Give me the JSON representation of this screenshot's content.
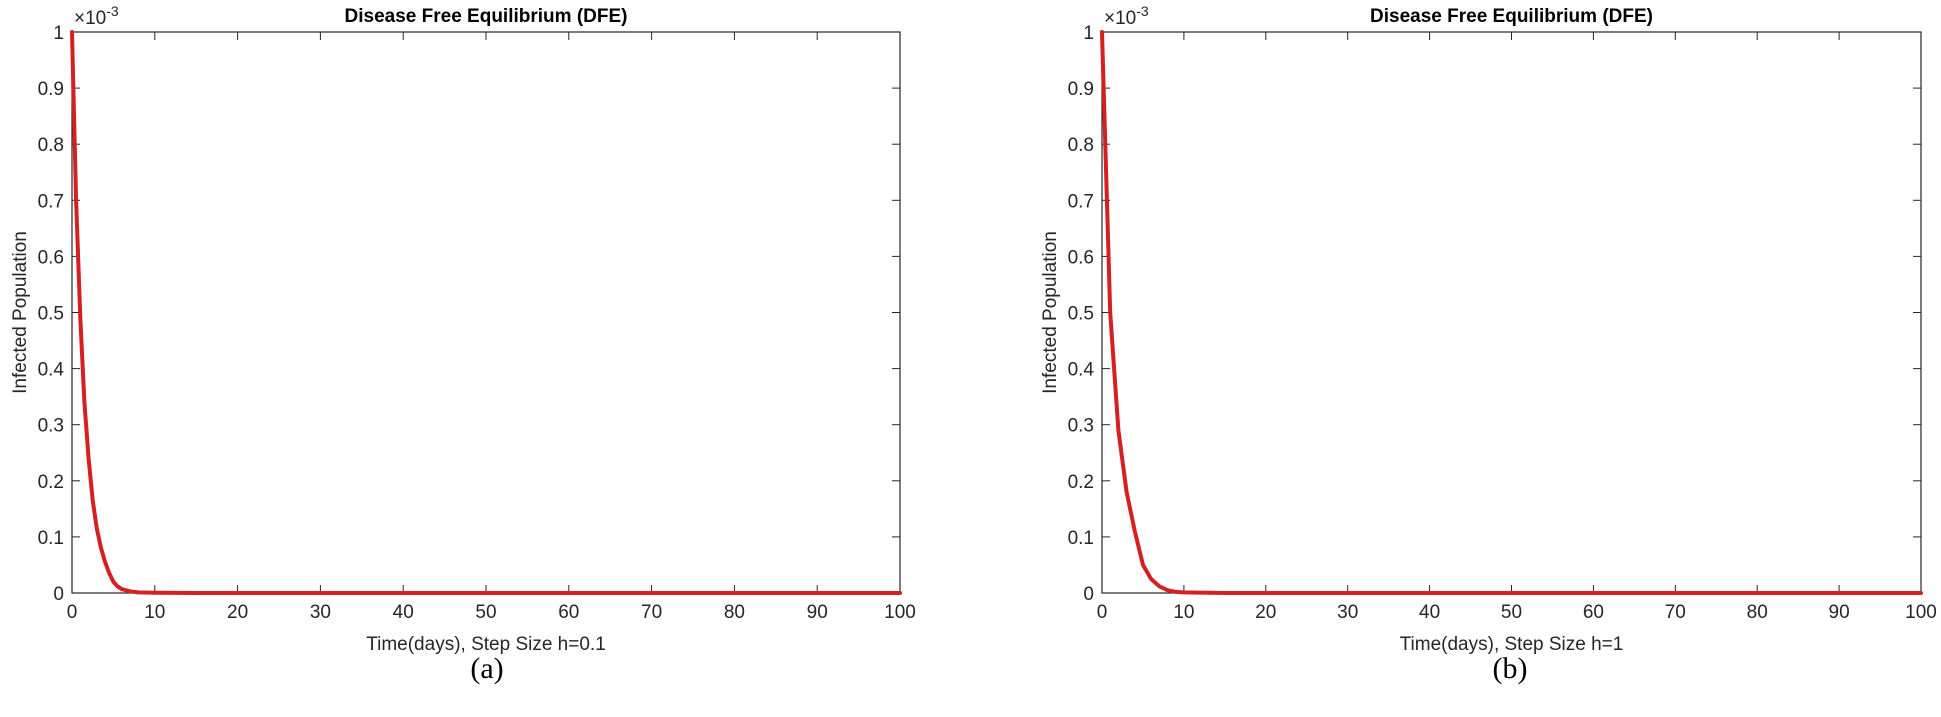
{
  "chart_data": [
    {
      "type": "line",
      "panel_label": "(a)",
      "title": "Disease Free Equilibrium (DFE)",
      "xlabel": "Time(days), Step Size h=0.1",
      "ylabel": "Infected Population",
      "y_exponent_label": "×10",
      "y_exponent_power": "-3",
      "xlim": [
        0,
        100
      ],
      "ylim": [
        0,
        1
      ],
      "xticks": [
        0,
        10,
        20,
        30,
        40,
        50,
        60,
        70,
        80,
        90,
        100
      ],
      "xtick_labels": [
        "0",
        "10",
        "20",
        "30",
        "40",
        "50",
        "60",
        "70",
        "80",
        "90",
        "100"
      ],
      "yticks": [
        0,
        0.1,
        0.2,
        0.3,
        0.4,
        0.5,
        0.6,
        0.7,
        0.8,
        0.9,
        1
      ],
      "ytick_labels": [
        "0",
        "0.1",
        "0.2",
        "0.3",
        "0.4",
        "0.5",
        "0.6",
        "0.7",
        "0.8",
        "0.9",
        "1"
      ],
      "grid": false,
      "line_color": "#d62020",
      "series": [
        {
          "x": [
            0,
            0.5,
            1,
            1.5,
            2,
            2.5,
            3,
            3.5,
            4,
            4.5,
            5,
            5.5,
            6,
            7,
            8,
            10,
            15,
            20,
            30,
            40,
            50,
            60,
            70,
            80,
            90,
            100
          ],
          "values": [
            1.0,
            0.7,
            0.49,
            0.34,
            0.24,
            0.165,
            0.115,
            0.08,
            0.055,
            0.035,
            0.02,
            0.012,
            0.007,
            0.003,
            0.001,
            0.0003,
            0,
            0,
            0,
            0,
            0,
            0,
            0,
            0,
            0,
            0
          ]
        }
      ]
    },
    {
      "type": "line",
      "panel_label": "(b)",
      "title": "Disease Free Equilibrium (DFE)",
      "xlabel": "Time(days), Step Size h=1",
      "ylabel": "Infected Population",
      "y_exponent_label": "×10",
      "y_exponent_power": "-3",
      "xlim": [
        0,
        100
      ],
      "ylim": [
        0,
        1
      ],
      "xticks": [
        0,
        10,
        20,
        30,
        40,
        50,
        60,
        70,
        80,
        90,
        100
      ],
      "xtick_labels": [
        "0",
        "10",
        "20",
        "30",
        "40",
        "50",
        "60",
        "70",
        "80",
        "90",
        "100"
      ],
      "yticks": [
        0,
        0.1,
        0.2,
        0.3,
        0.4,
        0.5,
        0.6,
        0.7,
        0.8,
        0.9,
        1
      ],
      "ytick_labels": [
        "0",
        "0.1",
        "0.2",
        "0.3",
        "0.4",
        "0.5",
        "0.6",
        "0.7",
        "0.8",
        "0.9",
        "1"
      ],
      "grid": false,
      "line_color": "#d62020",
      "series": [
        {
          "x": [
            0,
            1,
            2,
            3,
            4,
            5,
            6,
            7,
            8,
            9,
            10,
            15,
            20,
            30,
            40,
            50,
            60,
            70,
            80,
            90,
            100
          ],
          "values": [
            1.0,
            0.5,
            0.29,
            0.18,
            0.11,
            0.05,
            0.025,
            0.012,
            0.005,
            0.002,
            0.001,
            0,
            0,
            0,
            0,
            0,
            0,
            0,
            0,
            0,
            0
          ]
        }
      ]
    }
  ]
}
